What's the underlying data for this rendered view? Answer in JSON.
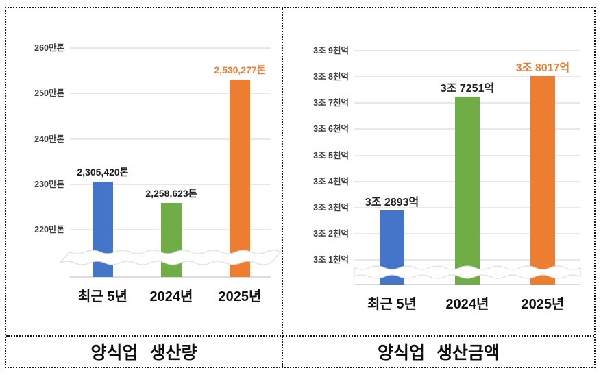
{
  "captions": {
    "left": "양식업 생산량",
    "right": "양식업 생산금액"
  },
  "colors": {
    "bar_blue": "#4575C9",
    "bar_green": "#70AD47",
    "bar_orange": "#ED7D31",
    "highlight_label_orange": "#ED7D31",
    "gridline": "#e8e8e8",
    "border_dotted": "#161616"
  },
  "chart_data": [
    {
      "id": "aquaculture-production-volume",
      "type": "bar",
      "title": "양식업 생산량",
      "unit": "톤",
      "categories": [
        "최근 5년",
        "2024년",
        "2025년"
      ],
      "values": [
        2305420,
        2258623,
        2530277
      ],
      "value_labels": [
        "2,305,420톤",
        "2,258,623톤",
        "2,530,277톤"
      ],
      "value_label_colors": [
        "#1f1f1f",
        "#1f1f1f",
        "#ED7D31"
      ],
      "bar_colors": [
        "#4575C9",
        "#70AD47",
        "#ED7D31"
      ],
      "y_ticks": [
        {
          "value": 2600000,
          "label": "260만톤"
        },
        {
          "value": 2500000,
          "label": "250만톤"
        },
        {
          "value": 2400000,
          "label": "240만톤"
        },
        {
          "value": 2300000,
          "label": "230만톤"
        },
        {
          "value": 2200000,
          "label": "220만톤"
        }
      ],
      "axis_break": true,
      "grid": true,
      "legend": "none"
    },
    {
      "id": "aquaculture-production-value",
      "type": "bar",
      "title": "양식업 생산금액",
      "unit": "억원",
      "categories": [
        "최근 5년",
        "2024년",
        "2025년"
      ],
      "values": [
        32893,
        37251,
        38017
      ],
      "value_labels": [
        "3조 2893억",
        "3조 7251억",
        "3조 8017억"
      ],
      "value_label_colors": [
        "#1f1f1f",
        "#1f1f1f",
        "#ED7D31"
      ],
      "bar_colors": [
        "#4575C9",
        "#70AD47",
        "#ED7D31"
      ],
      "y_ticks": [
        {
          "value": 39000,
          "label": "3조 9천억"
        },
        {
          "value": 38000,
          "label": "3조 8천억"
        },
        {
          "value": 37000,
          "label": "3조 7천억"
        },
        {
          "value": 36000,
          "label": "3조 6천억"
        },
        {
          "value": 35000,
          "label": "3조 5천억"
        },
        {
          "value": 34000,
          "label": "3조 4천억"
        },
        {
          "value": 33000,
          "label": "3조 3천억"
        },
        {
          "value": 32000,
          "label": "3조 2천억"
        },
        {
          "value": 31000,
          "label": "3조 1천억"
        }
      ],
      "axis_break": true,
      "grid": true,
      "legend": "none"
    }
  ]
}
